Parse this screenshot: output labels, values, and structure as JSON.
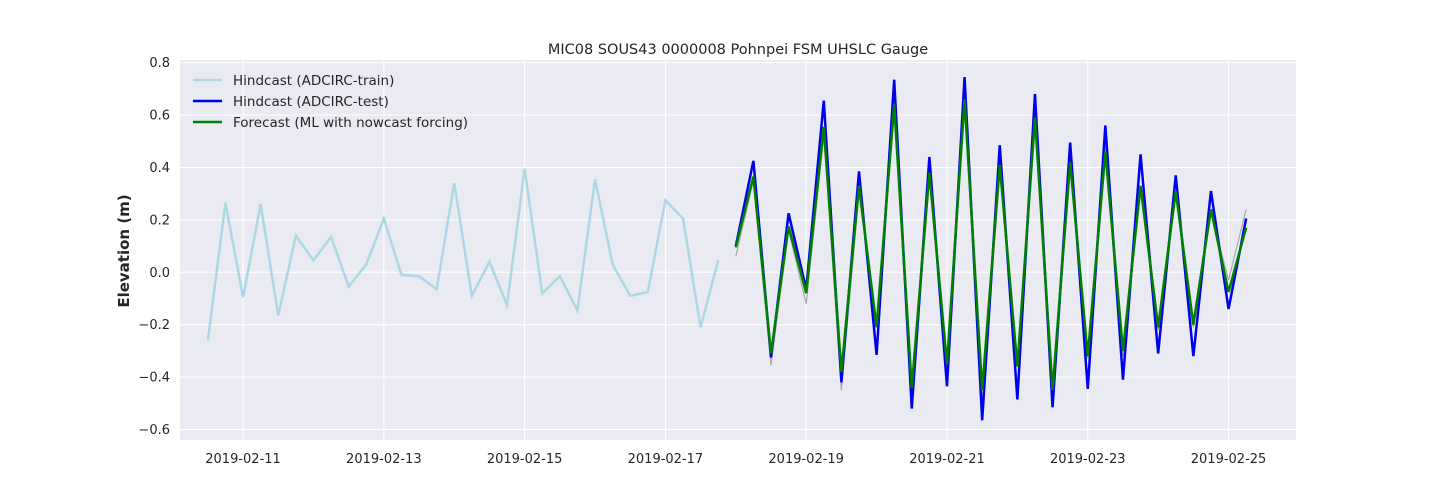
{
  "chart_data": {
    "type": "line",
    "title": "MIC08 SOUS43 0000008 Pohnpei FSM UHSLC Gauge",
    "xlabel": "",
    "ylabel": "Elevation (m)",
    "xlim": [
      "2019-02-10T02:30",
      "2019-02-25T23:00"
    ],
    "ylim": [
      -0.64,
      0.81
    ],
    "x_ticks": [
      "2019-02-11",
      "2019-02-13",
      "2019-02-15",
      "2019-02-17",
      "2019-02-19",
      "2019-02-21",
      "2019-02-23",
      "2019-02-25"
    ],
    "y_ticks": [
      -0.6,
      -0.4,
      -0.2,
      0.0,
      0.2,
      0.4,
      0.6,
      0.8
    ],
    "y_tick_labels": [
      "−0.6",
      "−0.4",
      "−0.2",
      "0.0",
      "0.2",
      "0.4",
      "0.6",
      "0.8"
    ],
    "grid": true,
    "legend_position": "top-left",
    "background": "#eaeaf2",
    "series": [
      {
        "name": "Hindcast (ADCIRC-train)",
        "color": "#add8e6",
        "width": 2.5,
        "legend": true,
        "start": "2019-02-10T12:00",
        "interval_hours": 6,
        "values": [
          -0.26,
          0.265,
          -0.095,
          0.26,
          -0.165,
          0.14,
          0.045,
          0.135,
          -0.055,
          0.03,
          0.205,
          -0.01,
          -0.015,
          -0.065,
          0.34,
          -0.09,
          0.04,
          -0.125,
          0.395,
          -0.08,
          -0.015,
          -0.145,
          0.355,
          0.03,
          -0.09,
          -0.075,
          0.275,
          0.205,
          -0.21,
          0.045
        ]
      },
      {
        "name": "",
        "color": "#a9a9a9",
        "width": 1.2,
        "legend": false,
        "start": "2019-02-18T00:00",
        "interval_hours": 6,
        "values": [
          0.06,
          0.35,
          -0.355,
          0.16,
          -0.12,
          0.52,
          -0.45,
          0.3,
          -0.2,
          0.62,
          -0.49,
          0.36,
          -0.36,
          0.63,
          -0.5,
          0.38,
          -0.34,
          0.6,
          -0.46,
          0.4,
          -0.33,
          0.48,
          -0.32,
          0.31,
          -0.22,
          0.31,
          -0.21,
          0.23,
          -0.03,
          0.24
        ]
      },
      {
        "name": "Hindcast (ADCIRC-test)",
        "color": "#0000ee",
        "width": 2.5,
        "legend": true,
        "start": "2019-02-18T00:00",
        "interval_hours": 6,
        "values": [
          0.1,
          0.425,
          -0.325,
          0.225,
          -0.065,
          0.655,
          -0.42,
          0.385,
          -0.315,
          0.735,
          -0.52,
          0.44,
          -0.435,
          0.745,
          -0.565,
          0.485,
          -0.485,
          0.68,
          -0.515,
          0.495,
          -0.445,
          0.56,
          -0.41,
          0.45,
          -0.31,
          0.37,
          -0.32,
          0.31,
          -0.14,
          0.205
        ]
      },
      {
        "name": "Forecast (ML with nowcast forcing)",
        "color": "#008000",
        "width": 2.5,
        "legend": true,
        "start": "2019-02-18T00:00",
        "interval_hours": 6,
        "values": [
          0.095,
          0.365,
          -0.31,
          0.175,
          -0.08,
          0.555,
          -0.38,
          0.33,
          -0.21,
          0.64,
          -0.44,
          0.38,
          -0.35,
          0.66,
          -0.45,
          0.41,
          -0.36,
          0.59,
          -0.45,
          0.42,
          -0.32,
          0.46,
          -0.3,
          0.33,
          -0.21,
          0.31,
          -0.2,
          0.24,
          -0.075,
          0.17
        ]
      }
    ]
  }
}
